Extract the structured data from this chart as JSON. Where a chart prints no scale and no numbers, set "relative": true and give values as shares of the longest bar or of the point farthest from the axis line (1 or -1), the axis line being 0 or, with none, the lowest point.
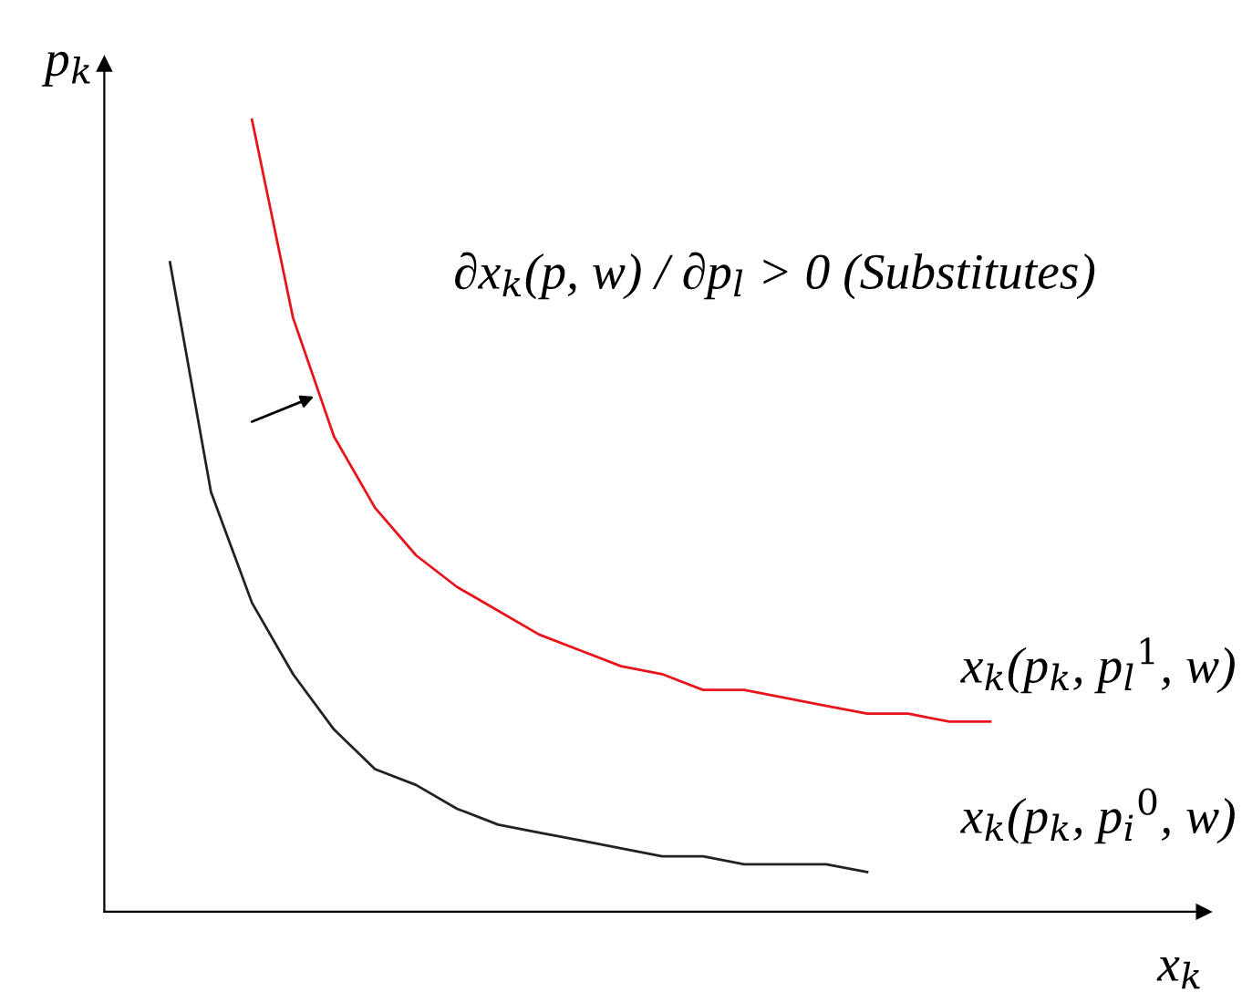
{
  "chart_data": {
    "type": "line",
    "relative": true,
    "xlabel": "x$_{k}$",
    "ylabel": "p$_{k}$",
    "annotations": [
      "∂x$_{k}$(p, w) / ∂p$_{l}$ > 0 (Substitutes)"
    ],
    "legend": false,
    "categories": [
      null,
      null,
      null,
      null,
      null,
      null,
      null,
      null,
      null,
      null,
      null,
      null,
      null,
      null,
      null,
      null,
      null,
      null,
      null,
      null,
      null
    ],
    "series": [
      {
        "name": "x$_{k}$(p$_{k}$, p$_{l}$$^{1}$, w)",
        "color": "#e8141c",
        "values": [
          null,
          null,
          1.0,
          0.75,
          0.6,
          0.51,
          0.45,
          0.41,
          0.38,
          0.35,
          0.33,
          0.31,
          0.3,
          0.28,
          0.28,
          0.27,
          0.26,
          0.25,
          0.25,
          0.24,
          0.24
        ]
      },
      {
        "name": "x$_{k}$(p$_{k}$, p$_{i}$$^{0}$, w)",
        "color": "#222222",
        "values": [
          0.82,
          0.53,
          0.39,
          0.3,
          0.23,
          0.18,
          0.16,
          0.13,
          0.11,
          0.1,
          0.09,
          0.08,
          0.07,
          0.07,
          0.06,
          0.06,
          0.06,
          0.05,
          null,
          null,
          null
        ]
      }
    ]
  }
}
